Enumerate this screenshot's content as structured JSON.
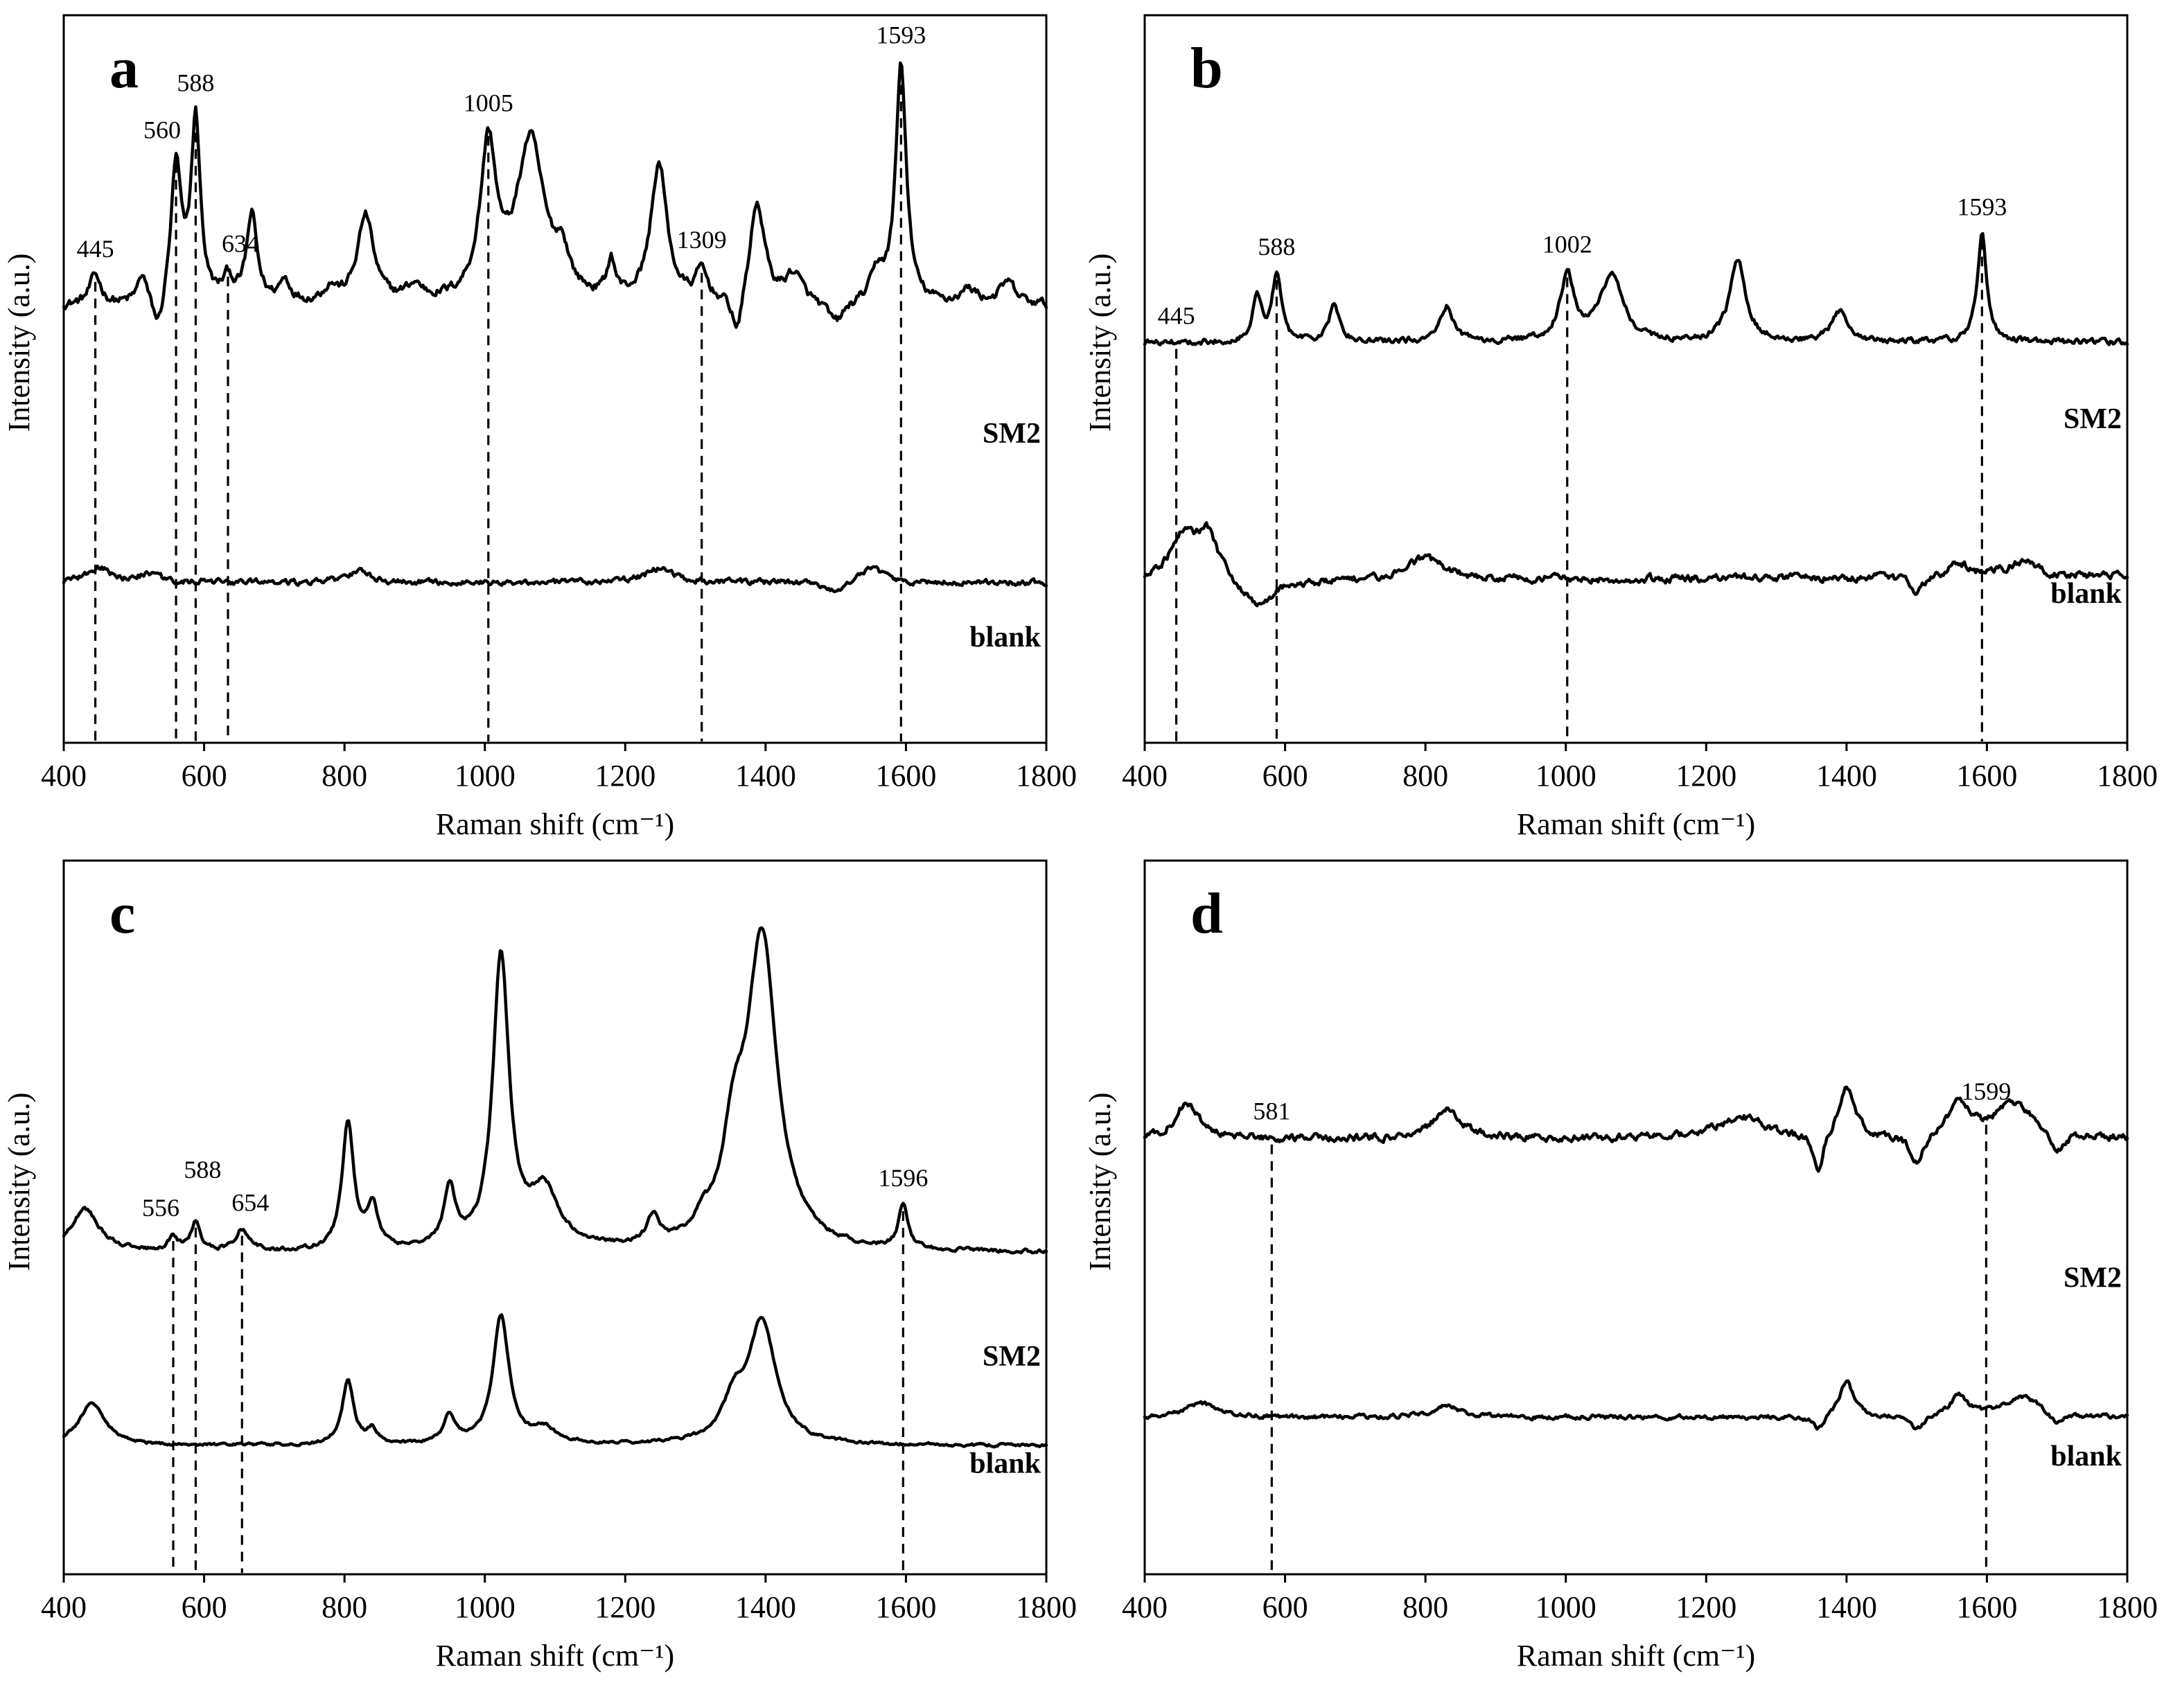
{
  "chart_data": [
    {
      "panel": "a",
      "type": "line",
      "xlabel": "Raman shift (cm⁻¹)",
      "ylabel": "Intensity (a.u.)",
      "xlim": [
        400,
        1800
      ],
      "xticks": [
        400,
        600,
        800,
        1000,
        1200,
        1400,
        1600,
        1800
      ],
      "series": [
        {
          "name": "SM2",
          "baseline": 0.6,
          "noise": 0.012,
          "slope": 0.0,
          "peaks": [
            [
              445,
              0.04,
              10
            ],
            [
              512,
              0.04,
              8
            ],
            [
              560,
              0.19,
              9
            ],
            [
              588,
              0.25,
              8
            ],
            [
              634,
              0.03,
              9
            ],
            [
              668,
              0.12,
              9
            ],
            [
              715,
              0.03,
              10
            ],
            [
              780,
              0.02,
              12
            ],
            [
              830,
              0.12,
              14
            ],
            [
              900,
              0.02,
              15
            ],
            [
              1005,
              0.21,
              14
            ],
            [
              1065,
              0.22,
              24
            ],
            [
              1110,
              0.05,
              12
            ],
            [
              1180,
              0.05,
              7
            ],
            [
              1248,
              0.19,
              14
            ],
            [
              1309,
              0.04,
              10
            ],
            [
              1388,
              0.14,
              13
            ],
            [
              1440,
              0.04,
              15
            ],
            [
              1560,
              0.04,
              12
            ],
            [
              1593,
              0.33,
              9
            ],
            [
              1690,
              0.02,
              15
            ],
            [
              1745,
              0.03,
              14
            ]
          ],
          "dips": [
            [
              535,
              0.05,
              10
            ],
            [
              1360,
              0.06,
              9
            ],
            [
              1500,
              0.03,
              15
            ]
          ]
        },
        {
          "name": "blank",
          "baseline": 0.22,
          "noise": 0.008,
          "slope": 0.0,
          "peaks": [
            [
              450,
              0.02,
              20
            ],
            [
              520,
              0.01,
              20
            ],
            [
              820,
              0.015,
              20
            ],
            [
              1250,
              0.02,
              25
            ],
            [
              1550,
              0.02,
              20
            ]
          ],
          "dips": [
            [
              1500,
              0.015,
              15
            ]
          ]
        }
      ],
      "peak_labels": [
        "445",
        "560",
        "588",
        "634",
        "1005",
        "1309",
        "1593"
      ],
      "peak_positions": [
        445,
        560,
        588,
        634,
        1005,
        1309,
        1593
      ],
      "peak_label_offsets": [
        [
          0,
          0
        ],
        [
          -20,
          0
        ],
        [
          0,
          0
        ],
        [
          18,
          0
        ],
        [
          0,
          0
        ],
        [
          0,
          0
        ],
        [
          0,
          0
        ]
      ]
    },
    {
      "panel": "b",
      "type": "line",
      "xlabel": "Raman shift (cm⁻¹)",
      "ylabel": "Intensity (a.u.)",
      "xlim": [
        400,
        1800
      ],
      "xticks": [
        400,
        600,
        800,
        1000,
        1200,
        1400,
        1600,
        1800
      ],
      "series": [
        {
          "name": "SM2",
          "baseline": 0.55,
          "noise": 0.008,
          "slope": 0.0,
          "peaks": [
            [
              560,
              0.06,
              8
            ],
            [
              588,
              0.09,
              8
            ],
            [
              670,
              0.05,
              9
            ],
            [
              830,
              0.05,
              12
            ],
            [
              1002,
              0.09,
              12
            ],
            [
              1065,
              0.09,
              20
            ],
            [
              1245,
              0.11,
              14
            ],
            [
              1390,
              0.04,
              14
            ],
            [
              1593,
              0.15,
              8
            ]
          ],
          "dips": []
        },
        {
          "name": "blank",
          "baseline": 0.22,
          "noise": 0.01,
          "slope": 0.01,
          "peaks": [
            [
              455,
              0.06,
              25
            ],
            [
              490,
              0.06,
              18
            ],
            [
              800,
              0.03,
              35
            ],
            [
              1560,
              0.02,
              15
            ],
            [
              1650,
              0.02,
              25
            ]
          ],
          "dips": [
            [
              560,
              0.04,
              25
            ],
            [
              1500,
              0.02,
              12
            ]
          ]
        }
      ],
      "peak_labels": [
        "445",
        "588",
        "1002",
        "1593"
      ],
      "peak_positions": [
        445,
        588,
        1002,
        1593
      ],
      "peak_label_offsets": [
        [
          0,
          0
        ],
        [
          0,
          0
        ],
        [
          0,
          0
        ],
        [
          0,
          0
        ]
      ]
    },
    {
      "panel": "c",
      "type": "line",
      "xlabel": "Raman shift (cm⁻¹)",
      "ylabel": "Intensity (a.u.)",
      "xlim": [
        400,
        1800
      ],
      "xticks": [
        400,
        600,
        800,
        1000,
        1200,
        1400,
        1600,
        1800
      ],
      "series": [
        {
          "name": "SM2",
          "baseline": 0.45,
          "noise": 0.005,
          "slope": 0.0,
          "peaks": [
            [
              430,
              0.06,
              25
            ],
            [
              556,
              0.02,
              8
            ],
            [
              588,
              0.04,
              8
            ],
            [
              654,
              0.03,
              12
            ],
            [
              805,
              0.18,
              10
            ],
            [
              840,
              0.06,
              9
            ],
            [
              950,
              0.08,
              10
            ],
            [
              1023,
              0.41,
              14
            ],
            [
              1085,
              0.08,
              25
            ],
            [
              1240,
              0.04,
              10
            ],
            [
              1310,
              0.02,
              12
            ],
            [
              1355,
              0.12,
              20
            ],
            [
              1395,
              0.43,
              26
            ],
            [
              1596,
              0.06,
              8
            ]
          ],
          "dips": []
        },
        {
          "name": "blank",
          "baseline": 0.18,
          "noise": 0.004,
          "slope": 0.0,
          "peaks": [
            [
              440,
              0.06,
              22
            ],
            [
              805,
              0.09,
              10
            ],
            [
              840,
              0.02,
              9
            ],
            [
              950,
              0.04,
              10
            ],
            [
              1023,
              0.18,
              14
            ],
            [
              1085,
              0.02,
              20
            ],
            [
              1355,
              0.05,
              20
            ],
            [
              1395,
              0.17,
              24
            ]
          ],
          "dips": []
        }
      ],
      "peak_labels": [
        "556",
        "588",
        "654",
        "1596"
      ],
      "peak_positions": [
        556,
        588,
        654,
        1596
      ],
      "peak_label_offsets": [
        [
          -18,
          0
        ],
        [
          10,
          -36
        ],
        [
          12,
          0
        ],
        [
          0,
          0
        ]
      ]
    },
    {
      "panel": "d",
      "type": "line",
      "xlabel": "Raman shift (cm⁻¹)",
      "ylabel": "Intensity (a.u.)",
      "xlim": [
        400,
        1800
      ],
      "xticks": [
        400,
        600,
        800,
        1000,
        1200,
        1400,
        1600,
        1800
      ],
      "series": [
        {
          "name": "SM2",
          "baseline": 0.61,
          "noise": 0.01,
          "slope": 0.0,
          "peaks": [
            [
              460,
              0.05,
              20
            ],
            [
              830,
              0.04,
              25
            ],
            [
              1250,
              0.03,
              40
            ],
            [
              1400,
              0.07,
              14
            ],
            [
              1560,
              0.05,
              18
            ],
            [
              1640,
              0.05,
              35
            ]
          ],
          "dips": [
            [
              1360,
              0.05,
              9
            ],
            [
              1500,
              0.04,
              12
            ],
            [
              1700,
              0.03,
              12
            ]
          ]
        },
        {
          "name": "blank",
          "baseline": 0.22,
          "noise": 0.006,
          "slope": 0.0,
          "peaks": [
            [
              480,
              0.02,
              25
            ],
            [
              830,
              0.015,
              25
            ],
            [
              1400,
              0.05,
              12
            ],
            [
              1560,
              0.03,
              15
            ],
            [
              1650,
              0.03,
              30
            ]
          ],
          "dips": [
            [
              1360,
              0.02,
              9
            ],
            [
              1500,
              0.02,
              12
            ],
            [
              1700,
              0.015,
              12
            ]
          ]
        }
      ],
      "peak_labels": [
        "581",
        "1599"
      ],
      "peak_positions": [
        581,
        1599
      ],
      "peak_label_offsets": [
        [
          0,
          0
        ],
        [
          0,
          0
        ]
      ]
    }
  ]
}
